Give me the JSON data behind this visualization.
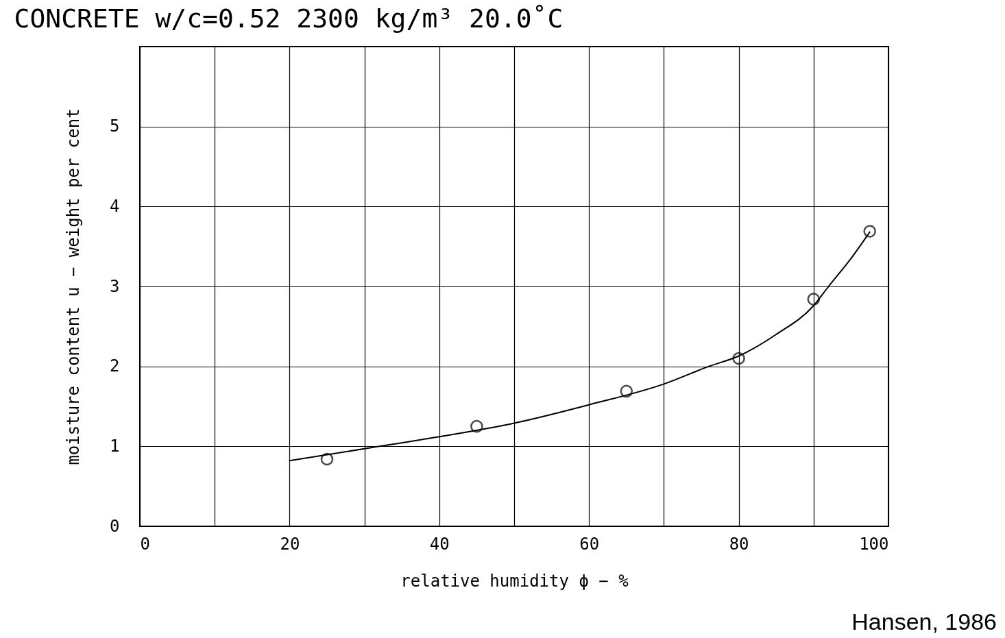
{
  "chart_data": {
    "type": "scatter",
    "title": "CONCRETE w/c=0.52         2300 kg/m³  20.0˚C",
    "xlabel": "relative humidity ϕ − %",
    "ylabel": "moisture content u − weight per cent",
    "annotations": [
      "Hansen, 1986"
    ],
    "xlim": [
      0,
      100
    ],
    "ylim": [
      0,
      6
    ],
    "xticks": [
      0,
      {
        "value": 10,
        "label": null
      },
      20,
      {
        "value": 30,
        "label": null
      },
      40,
      {
        "value": 50,
        "label": null
      },
      60,
      {
        "value": 70,
        "label": null
      },
      80,
      {
        "value": 90,
        "label": null
      },
      100
    ],
    "yticks": [
      0,
      1,
      2,
      3,
      4,
      5,
      {
        "value": 6,
        "label": null
      }
    ],
    "grid": true,
    "marker": "circle",
    "series": [
      {
        "color": "#000000",
        "x": [
          25,
          45,
          65,
          80,
          90,
          97.5
        ],
        "values": [
          0.84,
          1.25,
          1.69,
          2.1,
          2.84,
          3.69
        ]
      },
      {
        "type": "line",
        "color": "#000000",
        "line_style": "solid",
        "marker": "none",
        "x": [
          20,
          30,
          40,
          50,
          60,
          70,
          76,
          80,
          85,
          90,
          92,
          95,
          97.5
        ],
        "values": [
          0.82,
          0.97,
          1.12,
          1.29,
          1.52,
          1.78,
          2.0,
          2.13,
          2.4,
          2.76,
          3.0,
          3.35,
          3.68
        ]
      }
    ]
  }
}
